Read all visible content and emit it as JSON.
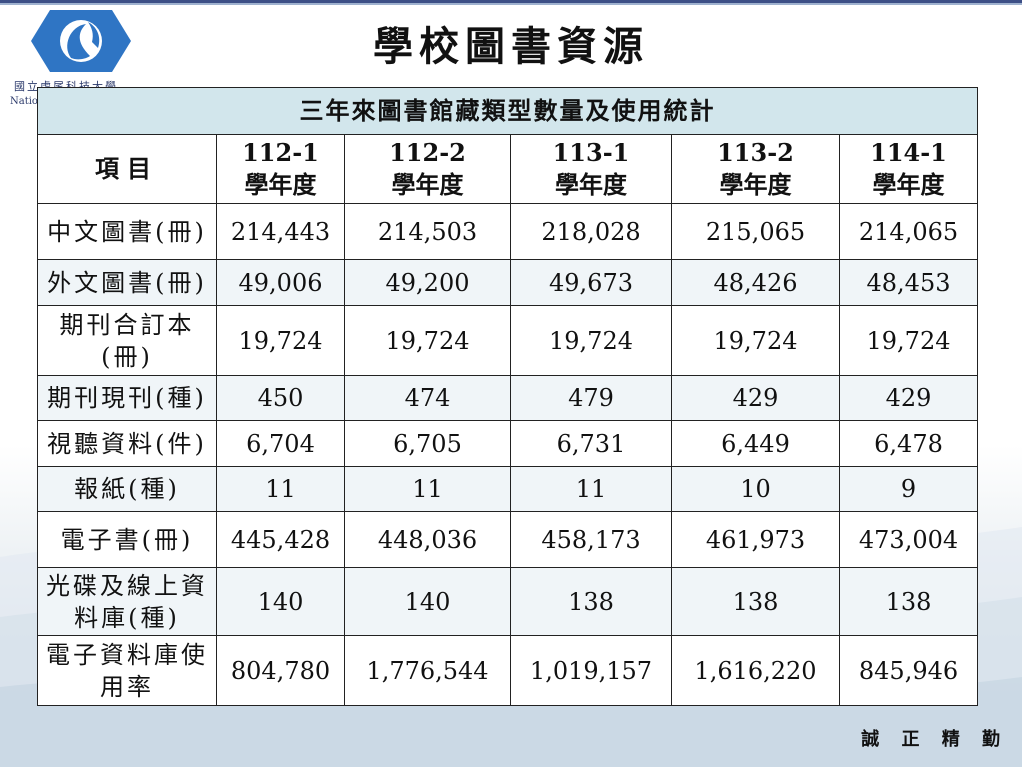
{
  "page": {
    "title": "學校圖書資源",
    "motto": "誠 正 精 勤"
  },
  "logo": {
    "name_zh": "國立虎尾科技大學",
    "name_en": "National"
  },
  "table": {
    "caption": "三年來圖書館藏類型數量及使用統計",
    "item_header": "項目",
    "columns": [
      {
        "term": "112-1",
        "unit": "學年度"
      },
      {
        "term": "112-2",
        "unit": "學年度"
      },
      {
        "term": "113-1",
        "unit": "學年度"
      },
      {
        "term": "113-2",
        "unit": "學年度"
      },
      {
        "term": "114-1",
        "unit": "學年度"
      }
    ],
    "rows": [
      {
        "label": "中文圖書(冊)",
        "values": [
          "214,443",
          "214,503",
          "218,028",
          "215,065",
          "214,065"
        ]
      },
      {
        "label": "外文圖書(冊)",
        "values": [
          "49,006",
          "49,200",
          "49,673",
          "48,426",
          "48,453"
        ]
      },
      {
        "label": "期刊合訂本",
        "label2": "(冊)",
        "values": [
          "19,724",
          "19,724",
          "19,724",
          "19,724",
          "19,724"
        ]
      },
      {
        "label": "期刊現刊(種)",
        "values": [
          "450",
          "474",
          "479",
          "429",
          "429"
        ]
      },
      {
        "label": "視聽資料(件)",
        "values": [
          "6,704",
          "6,705",
          "6,731",
          "6,449",
          "6,478"
        ]
      },
      {
        "label": "報紙(種)",
        "values": [
          "11",
          "11",
          "11",
          "10",
          "9"
        ]
      },
      {
        "label": "電子書(冊)",
        "values": [
          "445,428",
          "448,036",
          "458,173",
          "461,973",
          "473,004"
        ]
      },
      {
        "label": "光碟及線上資",
        "label2": "料庫(種)",
        "values": [
          "140",
          "140",
          "138",
          "138",
          "138"
        ]
      },
      {
        "label": "電子資料庫使",
        "label2": "用率",
        "values": [
          "804,780",
          "1,776,544",
          "1,019,157",
          "1,616,220",
          "845,946"
        ]
      }
    ]
  }
}
